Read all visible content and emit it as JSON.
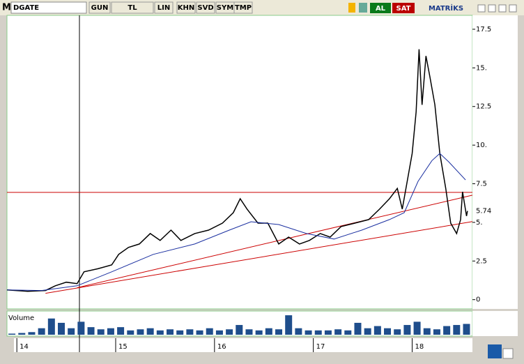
{
  "toolbar": {
    "logo": "M",
    "symbol": "DGATE",
    "buttons": [
      "GUN",
      "TL",
      "LIN",
      "KHN",
      "SVD",
      "SYM",
      "TMP"
    ],
    "buy": "AL",
    "sell": "SAT",
    "brand": "MATRİKS"
  },
  "chart_data": {
    "type": "line",
    "xlim": [
      13.9,
      18.61
    ],
    "xticks": [
      14,
      15,
      16,
      17,
      18
    ],
    "ylim": [
      -0.6,
      18.4
    ],
    "yticks": [
      0,
      2.5,
      {
        "value": 5,
        "label": "5."
      },
      7.5,
      {
        "value": 10,
        "label": "10."
      },
      12.5,
      {
        "value": 15,
        "label": "15."
      },
      17.5
    ],
    "last_value": 5.74,
    "series": [
      {
        "color": "#000000",
        "x": [
          13.9,
          14.11,
          14.29,
          14.39,
          14.5,
          14.61,
          14.68,
          14.82,
          14.96,
          15.03,
          15.13,
          15.24,
          15.35,
          15.45,
          15.56,
          15.66,
          15.8,
          15.94,
          16.08,
          16.19,
          16.26,
          16.33,
          16.44,
          16.54,
          16.65,
          16.75,
          16.86,
          16.96,
          17.07,
          17.17,
          17.28,
          17.42,
          17.56,
          17.67,
          17.77,
          17.85,
          17.9,
          17.95,
          18.0,
          18.04,
          18.07,
          18.1,
          18.14,
          18.18,
          18.23,
          18.28,
          18.34,
          18.39,
          18.45,
          18.49,
          18.51,
          18.55,
          18.56
        ],
        "values": [
          0.63,
          0.54,
          0.59,
          0.9,
          1.13,
          1.04,
          1.8,
          2.0,
          2.25,
          2.93,
          3.38,
          3.6,
          4.28,
          3.83,
          4.5,
          3.83,
          4.28,
          4.5,
          4.95,
          5.63,
          6.53,
          5.86,
          4.95,
          4.95,
          3.6,
          4.05,
          3.6,
          3.83,
          4.28,
          4.05,
          4.73,
          4.95,
          5.18,
          5.86,
          6.53,
          7.2,
          5.86,
          7.66,
          9.46,
          12.16,
          16.2,
          12.61,
          15.77,
          14.41,
          12.61,
          9.46,
          7.2,
          4.95,
          4.28,
          5.18,
          6.98,
          5.41,
          5.74
        ]
      },
      {
        "color": "#1a2fa0",
        "x": [
          13.9,
          14.25,
          14.61,
          14.96,
          15.38,
          15.8,
          16.15,
          16.37,
          16.65,
          16.93,
          17.21,
          17.49,
          17.77,
          17.92,
          18.06,
          18.2,
          18.28,
          18.37,
          18.54
        ],
        "values": [
          0.63,
          0.59,
          0.9,
          1.8,
          2.93,
          3.6,
          4.5,
          5.04,
          4.86,
          4.28,
          3.92,
          4.5,
          5.18,
          5.63,
          7.66,
          9.0,
          9.46,
          8.92,
          7.75
        ]
      }
    ],
    "hline": {
      "value": 6.94,
      "color": "#cc0000"
    },
    "trendlines": [
      {
        "color": "#cc0000",
        "x": [
          14.29,
          18.61
        ],
        "values": [
          0.41,
          5.05
        ]
      },
      {
        "color": "#cc0000",
        "x": [
          14.61,
          18.61
        ],
        "values": [
          0.77,
          6.76
        ]
      }
    ],
    "volume": {
      "label": "Volume",
      "color": "#1f4e8c",
      "ylim": [
        0,
        100
      ],
      "x": [
        13.95,
        14.05,
        14.15,
        14.25,
        14.35,
        14.45,
        14.55,
        14.65,
        14.75,
        14.85,
        14.95,
        15.05,
        15.15,
        15.25,
        15.35,
        15.45,
        15.55,
        15.65,
        15.75,
        15.85,
        15.95,
        16.05,
        16.15,
        16.25,
        16.35,
        16.45,
        16.55,
        16.65,
        16.75,
        16.85,
        16.95,
        17.05,
        17.15,
        17.25,
        17.35,
        17.45,
        17.55,
        17.65,
        17.75,
        17.85,
        17.95,
        18.05,
        18.15,
        18.25,
        18.35,
        18.45,
        18.55
      ],
      "values": [
        5,
        8,
        12,
        30,
        75,
        55,
        30,
        60,
        35,
        25,
        30,
        35,
        20,
        25,
        30,
        20,
        25,
        20,
        25,
        20,
        30,
        20,
        25,
        45,
        25,
        20,
        30,
        25,
        90,
        30,
        20,
        20,
        20,
        25,
        20,
        55,
        30,
        40,
        30,
        25,
        45,
        60,
        30,
        25,
        40,
        45,
        50
      ]
    }
  }
}
